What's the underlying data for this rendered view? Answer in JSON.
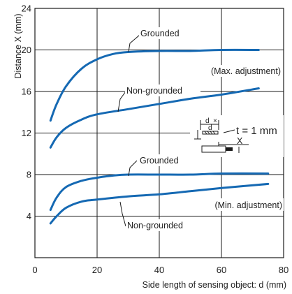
{
  "chart_data": {
    "type": "line",
    "title": "",
    "xlabel": "Side length of sensing object: d (mm)",
    "ylabel": "Distance X (mm)",
    "xlim": [
      0,
      80
    ],
    "ylim": [
      0,
      24
    ],
    "xticks": [
      "0",
      "20",
      "40",
      "60",
      "80"
    ],
    "yticks": [
      "4",
      "8",
      "12",
      "16",
      "20",
      "24"
    ],
    "grid": true,
    "series": [
      {
        "name": "Grounded",
        "group": "(Max. adjustment)",
        "x": [
          5,
          7,
          10,
          15,
          20,
          25,
          30,
          40,
          50,
          60,
          72
        ],
        "y": [
          13.2,
          14.8,
          16.5,
          18.2,
          19.1,
          19.6,
          19.8,
          19.9,
          19.9,
          20.0,
          20.0
        ]
      },
      {
        "name": "Non-grounded",
        "group": "(Max. adjustment)",
        "x": [
          5,
          7,
          10,
          15,
          20,
          30,
          40,
          50,
          60,
          72
        ],
        "y": [
          10.6,
          11.6,
          12.5,
          13.3,
          13.8,
          14.3,
          14.8,
          15.3,
          15.7,
          16.3
        ]
      },
      {
        "name": "Grounded",
        "group": "(Min. adjustment)",
        "x": [
          5,
          7,
          10,
          15,
          20,
          25,
          30,
          40,
          50,
          60,
          75
        ],
        "y": [
          4.6,
          5.8,
          6.8,
          7.4,
          7.7,
          7.9,
          8.0,
          8.0,
          8.0,
          8.1,
          8.1
        ]
      },
      {
        "name": "Non-grounded",
        "group": "(Min. adjustment)",
        "x": [
          5,
          7,
          10,
          15,
          20,
          30,
          40,
          50,
          60,
          75
        ],
        "y": [
          3.3,
          4.0,
          4.8,
          5.4,
          5.6,
          5.9,
          6.1,
          6.4,
          6.7,
          7.1
        ]
      }
    ],
    "annotations": {
      "grounded_upper": "Grounded",
      "nongrounded_upper": "Non-grounded",
      "max_adjustment": "(Max. adjustment)",
      "grounded_lower": "Grounded",
      "nongrounded_lower": "Non-grounded",
      "min_adjustment": "(Min. adjustment)",
      "thickness": "t = 1 mm",
      "inset_d": "d",
      "inset_d2": "d",
      "inset_x": "X"
    }
  }
}
